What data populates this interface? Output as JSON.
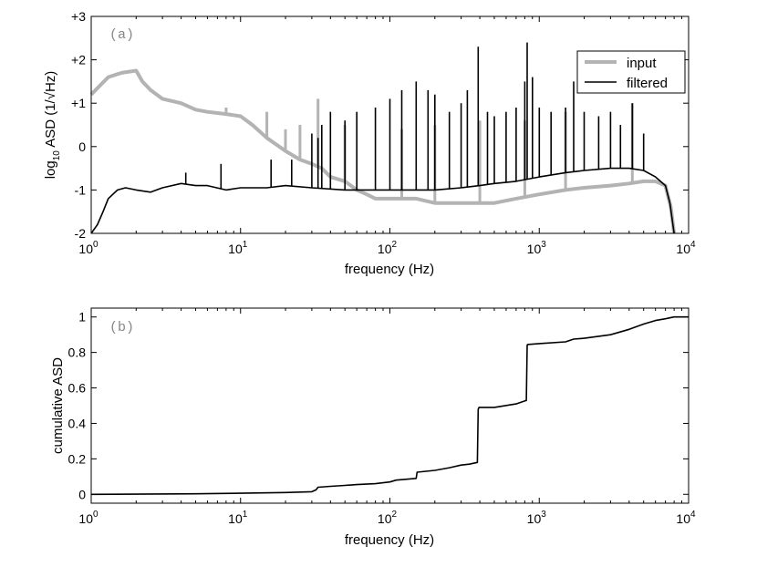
{
  "chart_data": [
    {
      "type": "line",
      "panel_label": "(a)",
      "xlabel": "frequency (Hz)",
      "ylabel_prefix": "log",
      "ylabel_sub": "10",
      "ylabel_suffix": " ASD (1/√Hz)",
      "xscale": "log",
      "xlim": [
        1,
        10000
      ],
      "ylim": [
        -2,
        3
      ],
      "x_ticks": [
        1,
        10,
        100,
        1000,
        10000
      ],
      "x_tick_base": "10",
      "x_tick_exponents": [
        "0",
        "1",
        "2",
        "3",
        "4"
      ],
      "y_ticks": [
        -2,
        -1,
        0,
        1,
        2,
        3
      ],
      "y_tick_labels": [
        "-2",
        "-1",
        "0",
        "+1",
        "+2",
        "+3"
      ],
      "grid": false,
      "legend_position": "top-right",
      "series": [
        {
          "name": "input",
          "color": "#b3b3b3",
          "x": [
            1,
            1.3,
            1.6,
            2.0,
            2.2,
            2.5,
            3,
            4,
            5,
            6,
            8,
            10,
            12,
            15,
            20,
            25,
            30,
            35,
            40,
            50,
            60,
            70,
            80,
            100,
            150,
            200,
            300,
            500,
            700,
            1000,
            1500,
            2000,
            3000,
            4000,
            5000,
            6000,
            7000,
            7600,
            8000
          ],
          "y": [
            1.2,
            1.6,
            1.7,
            1.75,
            1.5,
            1.3,
            1.1,
            1.0,
            0.85,
            0.8,
            0.75,
            0.7,
            0.5,
            0.2,
            -0.1,
            -0.3,
            -0.4,
            -0.5,
            -0.7,
            -0.8,
            -1.0,
            -1.1,
            -1.2,
            -1.2,
            -1.2,
            -1.3,
            -1.3,
            -1.3,
            -1.2,
            -1.1,
            -1.0,
            -0.95,
            -0.9,
            -0.85,
            -0.8,
            -0.8,
            -0.9,
            -1.4,
            -2.0
          ],
          "peaks": [
            {
              "x": 8,
              "y": 0.9
            },
            {
              "x": 15,
              "y": 0.8
            },
            {
              "x": 20,
              "y": 0.4
            },
            {
              "x": 25,
              "y": 0.5
            },
            {
              "x": 33,
              "y": 1.1
            },
            {
              "x": 50,
              "y": 0.5
            },
            {
              "x": 120,
              "y": 0.4
            },
            {
              "x": 200,
              "y": 0.5
            },
            {
              "x": 400,
              "y": 0.6
            },
            {
              "x": 800,
              "y": 0.6
            },
            {
              "x": 1500,
              "y": 0.8
            },
            {
              "x": 4200,
              "y": 1.0
            }
          ]
        },
        {
          "name": "filtered",
          "color": "#000000",
          "x": [
            1,
            1.1,
            1.2,
            1.3,
            1.5,
            1.7,
            2,
            2.5,
            3,
            4,
            5,
            6,
            8,
            10,
            15,
            20,
            30,
            50,
            70,
            100,
            150,
            200,
            300,
            400,
            500,
            700,
            1000,
            1500,
            2000,
            3000,
            4000,
            5000,
            6000,
            7000,
            7500,
            8000
          ],
          "y": [
            -2.0,
            -1.8,
            -1.5,
            -1.2,
            -1.0,
            -0.95,
            -1.0,
            -1.05,
            -0.95,
            -0.85,
            -0.9,
            -0.9,
            -1.0,
            -0.95,
            -0.95,
            -0.9,
            -0.95,
            -1.0,
            -1.0,
            -1.0,
            -1.0,
            -1.0,
            -0.95,
            -0.9,
            -0.85,
            -0.8,
            -0.7,
            -0.6,
            -0.55,
            -0.5,
            -0.5,
            -0.55,
            -0.7,
            -0.9,
            -1.3,
            -2.0
          ],
          "peaks": [
            {
              "x": 4.3,
              "y": -0.6
            },
            {
              "x": 7.4,
              "y": -0.4
            },
            {
              "x": 16,
              "y": -0.3
            },
            {
              "x": 22,
              "y": -0.3
            },
            {
              "x": 30,
              "y": 0.3
            },
            {
              "x": 33,
              "y": 0.2
            },
            {
              "x": 35,
              "y": 0.5
            },
            {
              "x": 40,
              "y": 0.8
            },
            {
              "x": 50,
              "y": 0.6
            },
            {
              "x": 60,
              "y": 0.8
            },
            {
              "x": 80,
              "y": 0.9
            },
            {
              "x": 100,
              "y": 1.1
            },
            {
              "x": 120,
              "y": 1.3
            },
            {
              "x": 150,
              "y": 1.5
            },
            {
              "x": 180,
              "y": 1.3
            },
            {
              "x": 200,
              "y": 1.2
            },
            {
              "x": 250,
              "y": 0.8
            },
            {
              "x": 300,
              "y": 1.0
            },
            {
              "x": 330,
              "y": 1.3
            },
            {
              "x": 390,
              "y": 2.3
            },
            {
              "x": 450,
              "y": 0.8
            },
            {
              "x": 500,
              "y": 0.7
            },
            {
              "x": 600,
              "y": 0.8
            },
            {
              "x": 700,
              "y": 0.9
            },
            {
              "x": 800,
              "y": 1.5
            },
            {
              "x": 830,
              "y": 2.4
            },
            {
              "x": 900,
              "y": 1.6
            },
            {
              "x": 1000,
              "y": 0.9
            },
            {
              "x": 1200,
              "y": 0.8
            },
            {
              "x": 1500,
              "y": 0.9
            },
            {
              "x": 1700,
              "y": 1.5
            },
            {
              "x": 2000,
              "y": 0.8
            },
            {
              "x": 2500,
              "y": 0.7
            },
            {
              "x": 3000,
              "y": 0.8
            },
            {
              "x": 3500,
              "y": 0.5
            },
            {
              "x": 4200,
              "y": 1.0
            },
            {
              "x": 5000,
              "y": 0.3
            }
          ]
        }
      ]
    },
    {
      "type": "line",
      "panel_label": "(b)",
      "xlabel": "frequency (Hz)",
      "ylabel": "cumulative ASD",
      "xscale": "log",
      "xlim": [
        1,
        10000
      ],
      "ylim": [
        -0.05,
        1.05
      ],
      "x_ticks": [
        1,
        10,
        100,
        1000,
        10000
      ],
      "x_tick_base": "10",
      "x_tick_exponents": [
        "0",
        "1",
        "2",
        "3",
        "4"
      ],
      "y_ticks": [
        0,
        0.2,
        0.4,
        0.6,
        0.8,
        1
      ],
      "y_tick_labels": [
        "0",
        "0.2",
        "0.4",
        "0.6",
        "0.8",
        "1"
      ],
      "grid": false,
      "series": [
        {
          "color": "#000000",
          "x": [
            1,
            5,
            10,
            20,
            30,
            32,
            33,
            40,
            50,
            60,
            80,
            100,
            110,
            150,
            152,
            200,
            250,
            300,
            340,
            385,
            390,
            395,
            500,
            700,
            820,
            830,
            835,
            1000,
            1500,
            1700,
            2000,
            3000,
            4000,
            5000,
            6000,
            7000,
            8000,
            10000
          ],
          "y": [
            0.0,
            0.003,
            0.006,
            0.01,
            0.015,
            0.025,
            0.04,
            0.045,
            0.05,
            0.055,
            0.06,
            0.07,
            0.08,
            0.09,
            0.125,
            0.135,
            0.15,
            0.165,
            0.17,
            0.18,
            0.48,
            0.49,
            0.49,
            0.51,
            0.53,
            0.84,
            0.845,
            0.85,
            0.86,
            0.875,
            0.88,
            0.9,
            0.93,
            0.96,
            0.98,
            0.99,
            1.0,
            1.0
          ]
        }
      ]
    }
  ]
}
